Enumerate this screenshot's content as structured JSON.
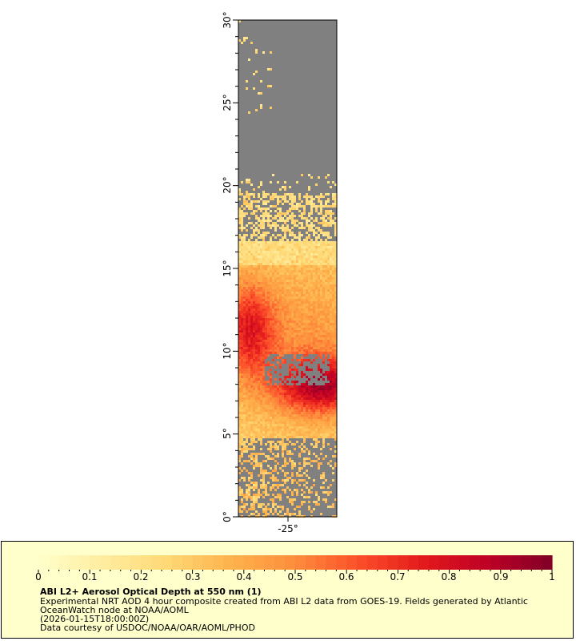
{
  "map": {
    "lat_ticks": [
      "0°",
      "5°",
      "10°",
      "15°",
      "20°",
      "25°",
      "30°"
    ],
    "lon_ticks": [
      "-25°"
    ],
    "land_color": "#808080",
    "no_data_color": "#c0c8d0"
  },
  "legend": {
    "title": "ABI L2+ Aerosol Optical Depth at 550 nm (1)",
    "description": "Experimental NRT AOD 4 hour composite created from ABI L2 data from GOES-19. Fields generated by Atlantic",
    "description_line2": "OceanWatch node at NOAA/AOML",
    "timestamp": "(2026-01-15T18:00:00Z)",
    "credit": "Data courtesy of USDOC/NOAA/OAR/AOML/PHOD",
    "tick_labels": [
      "0",
      "0.1",
      "0.2",
      "0.3",
      "0.4",
      "0.5",
      "0.6",
      "0.7",
      "0.8",
      "0.9",
      "1"
    ],
    "colors": [
      "#ffffcc",
      "#ffeda0",
      "#fed976",
      "#feb24c",
      "#fd8d3c",
      "#fc4e2a",
      "#e31a1c",
      "#bd0026",
      "#800026"
    ],
    "background": "#ffffcc"
  }
}
